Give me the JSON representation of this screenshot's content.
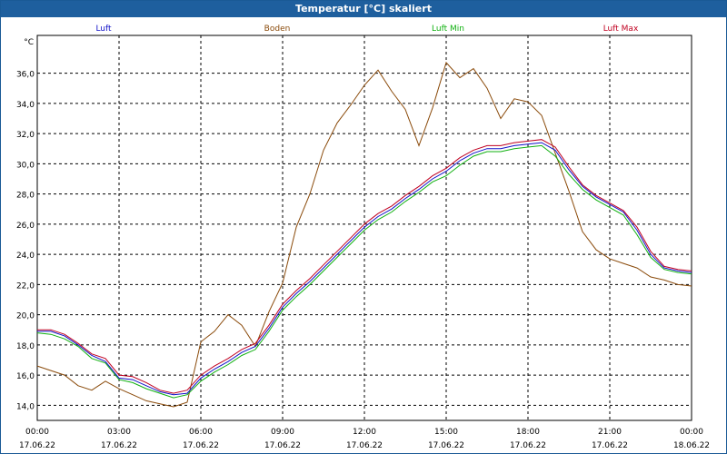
{
  "window": {
    "title": "Temperatur [°C] skaliert"
  },
  "chart_data": {
    "type": "line",
    "title": "Temperatur [°C] skaliert",
    "ylabel": "°C",
    "ylim": [
      13,
      38.5
    ],
    "xlim": [
      "17.06.22 00:00",
      "18.06.22 00:00"
    ],
    "grid": true,
    "legend_position": "top",
    "y_ticks": [
      "14,0",
      "16,0",
      "18,0",
      "20,0",
      "22,0",
      "24,0",
      "26,0",
      "28,0",
      "30,0",
      "32,0",
      "34,0",
      "36,0"
    ],
    "x_ticks": [
      {
        "time": "00:00",
        "date": "17.06.22"
      },
      {
        "time": "03:00",
        "date": "17.06.22"
      },
      {
        "time": "06:00",
        "date": "17.06.22"
      },
      {
        "time": "09:00",
        "date": "17.06.22"
      },
      {
        "time": "12:00",
        "date": "17.06.22"
      },
      {
        "time": "15:00",
        "date": "17.06.22"
      },
      {
        "time": "18:00",
        "date": "17.06.22"
      },
      {
        "time": "21:00",
        "date": "17.06.22"
      },
      {
        "time": "00:00",
        "date": "18.06.22"
      }
    ],
    "x": [
      "00:00",
      "00:30",
      "01:00",
      "01:30",
      "02:00",
      "02:30",
      "03:00",
      "03:30",
      "04:00",
      "04:30",
      "05:00",
      "05:30",
      "06:00",
      "06:30",
      "07:00",
      "07:30",
      "08:00",
      "08:30",
      "09:00",
      "09:30",
      "10:00",
      "10:30",
      "11:00",
      "11:30",
      "12:00",
      "12:30",
      "13:00",
      "13:30",
      "14:00",
      "14:30",
      "15:00",
      "15:30",
      "16:00",
      "16:30",
      "17:00",
      "17:30",
      "18:00",
      "18:30",
      "19:00",
      "19:30",
      "20:00",
      "20:30",
      "21:00",
      "21:30",
      "22:00",
      "22:30",
      "23:00",
      "23:30",
      "24:00"
    ],
    "series": [
      {
        "name": "Luft",
        "color": "#1010c8",
        "values": [
          18.9,
          18.9,
          18.6,
          18.0,
          17.3,
          16.9,
          15.8,
          15.7,
          15.3,
          14.9,
          14.7,
          14.8,
          15.8,
          16.4,
          16.9,
          17.5,
          17.9,
          19.1,
          20.5,
          21.4,
          22.2,
          23.1,
          24.0,
          24.9,
          25.8,
          26.5,
          27.0,
          27.7,
          28.3,
          29.0,
          29.5,
          30.2,
          30.7,
          31.0,
          31.0,
          31.2,
          31.3,
          31.4,
          30.9,
          29.6,
          28.5,
          27.8,
          27.3,
          26.8,
          25.6,
          24.0,
          23.1,
          22.9,
          22.8
        ]
      },
      {
        "name": "Boden",
        "color": "#8a4a0a",
        "values": [
          16.6,
          16.3,
          16.0,
          15.3,
          15.0,
          15.6,
          15.1,
          14.7,
          14.3,
          14.1,
          13.9,
          14.2,
          18.2,
          18.9,
          20.0,
          19.3,
          17.9,
          20.2,
          22.1,
          25.8,
          28.0,
          30.9,
          32.7,
          33.9,
          35.2,
          36.2,
          34.8,
          33.6,
          31.2,
          33.7,
          36.7,
          35.7,
          36.3,
          35.0,
          33.0,
          34.3,
          34.1,
          33.2,
          30.7,
          28.2,
          25.5,
          24.3,
          23.7,
          23.4,
          23.1,
          22.5,
          22.3,
          22.0,
          21.9
        ]
      },
      {
        "name": "Luft Min",
        "color": "#10b010",
        "values": [
          18.8,
          18.7,
          18.4,
          17.9,
          17.1,
          16.8,
          15.7,
          15.5,
          15.1,
          14.8,
          14.5,
          14.7,
          15.6,
          16.2,
          16.7,
          17.3,
          17.7,
          18.9,
          20.3,
          21.2,
          22.0,
          22.9,
          23.8,
          24.7,
          25.6,
          26.3,
          26.8,
          27.5,
          28.1,
          28.8,
          29.2,
          29.9,
          30.5,
          30.8,
          30.8,
          31.0,
          31.1,
          31.2,
          30.5,
          29.3,
          28.3,
          27.6,
          27.1,
          26.6,
          25.3,
          23.8,
          23.0,
          22.8,
          22.7
        ]
      },
      {
        "name": "Luft Max",
        "color": "#c00020",
        "values": [
          19.0,
          19.0,
          18.7,
          18.1,
          17.4,
          17.1,
          16.0,
          15.9,
          15.5,
          15.0,
          14.8,
          15.0,
          16.0,
          16.6,
          17.1,
          17.7,
          18.1,
          19.3,
          20.7,
          21.6,
          22.4,
          23.3,
          24.2,
          25.1,
          26.0,
          26.7,
          27.2,
          27.9,
          28.5,
          29.2,
          29.7,
          30.4,
          30.9,
          31.2,
          31.2,
          31.4,
          31.5,
          31.6,
          31.1,
          29.8,
          28.6,
          27.9,
          27.4,
          26.9,
          25.8,
          24.2,
          23.2,
          23.0,
          22.9
        ]
      }
    ]
  }
}
